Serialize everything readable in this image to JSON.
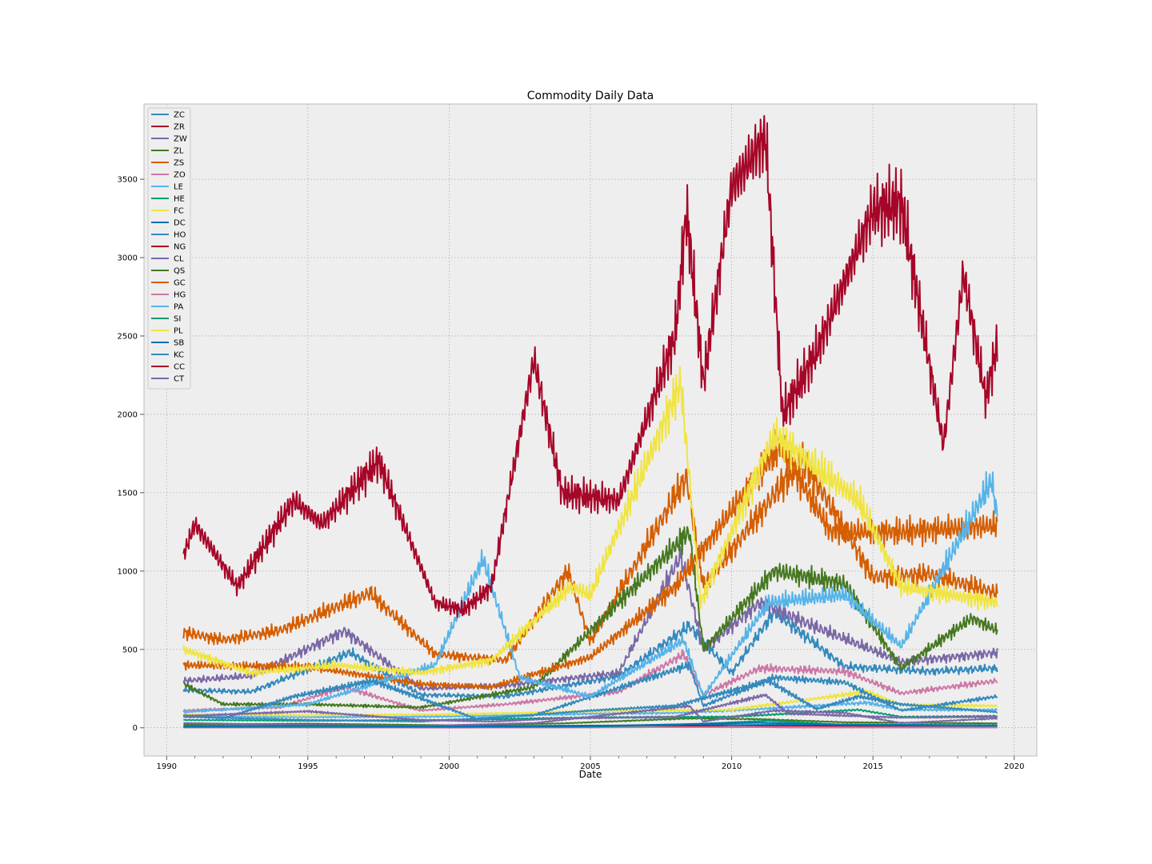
{
  "chart_data": {
    "type": "line",
    "title": "Commodity Daily Data",
    "xlabel": "Date",
    "ylabel": "",
    "xlim": [
      1989.2,
      2020.8
    ],
    "ylim": [
      -180,
      3980
    ],
    "x_ticks": [
      1990,
      1995,
      2000,
      2005,
      2010,
      2015,
      2020
    ],
    "x_tick_labels": [
      "1990",
      "1995",
      "2000",
      "2005",
      "2010",
      "2015",
      "2020"
    ],
    "y_ticks": [
      0,
      500,
      1000,
      1500,
      2000,
      2500,
      3000,
      3500
    ],
    "y_tick_labels": [
      "0",
      "500",
      "1000",
      "1500",
      "2000",
      "2500",
      "3000",
      "3500"
    ],
    "grid": true,
    "legend_position": "top-left",
    "series": [
      {
        "name": "ZC",
        "color": "#348ABD",
        "x": [
          1990.6,
          1993,
          1996.5,
          1999,
          2002,
          2006,
          2008.5,
          2010,
          2011.5,
          2014,
          2017,
          2019.4
        ],
        "values": [
          240,
          230,
          480,
          210,
          200,
          330,
          650,
          350,
          740,
          390,
          360,
          380
        ]
      },
      {
        "name": "ZR",
        "color": "#A60628",
        "x": [
          1990.6,
          1995,
          2000,
          2004,
          2008.5,
          2011,
          2015,
          2019.4
        ],
        "values": [
          7,
          8,
          6,
          8,
          22,
          14,
          11,
          11
        ]
      },
      {
        "name": "ZW",
        "color": "#7A68A6",
        "x": [
          1990.6,
          1993,
          1996.3,
          1999,
          2002,
          2006,
          2008.2,
          2009,
          2011,
          2013,
          2016,
          2019.4
        ],
        "values": [
          300,
          330,
          620,
          250,
          270,
          350,
          1100,
          500,
          800,
          640,
          420,
          480
        ]
      },
      {
        "name": "ZL",
        "color": "#467821",
        "x": [
          1990.6,
          1995,
          2000,
          2004,
          2008.5,
          2011,
          2014,
          2019.4
        ],
        "values": [
          22,
          26,
          16,
          28,
          60,
          55,
          35,
          28
        ]
      },
      {
        "name": "ZS",
        "color": "#D55E00",
        "x": [
          1990.6,
          1992,
          1994,
          1997.2,
          1999.5,
          2002,
          2004.2,
          2005,
          2008.4,
          2009,
          2012.5,
          2015,
          2017,
          2019.4
        ],
        "values": [
          610,
          560,
          620,
          860,
          470,
          430,
          1000,
          550,
          1600,
          900,
          1720,
          960,
          980,
          860
        ]
      },
      {
        "name": "ZO",
        "color": "#CC79A7",
        "x": [
          1990.6,
          1994,
          1996.3,
          1999,
          2002,
          2006,
          2008.3,
          2009,
          2011,
          2014,
          2016,
          2019.4
        ],
        "values": [
          110,
          130,
          260,
          110,
          150,
          230,
          470,
          210,
          380,
          360,
          220,
          300
        ]
      },
      {
        "name": "LE",
        "color": "#56B4E9",
        "x": [
          1990.6,
          1995,
          2000,
          2005,
          2008,
          2011,
          2014.8,
          2016,
          2019.4
        ],
        "values": [
          75,
          68,
          72,
          90,
          95,
          120,
          160,
          115,
          115
        ]
      },
      {
        "name": "HE",
        "color": "#009E73",
        "x": [
          1990.6,
          1995,
          2000,
          2005,
          2010,
          2014.5,
          2016,
          2019.4
        ],
        "values": [
          50,
          45,
          50,
          65,
          70,
          115,
          70,
          75
        ]
      },
      {
        "name": "FC",
        "color": "#F0E442",
        "x": [
          1990.6,
          1995,
          2000,
          2005,
          2010,
          2014.8,
          2016,
          2019.4
        ],
        "values": [
          85,
          80,
          85,
          105,
          115,
          230,
          145,
          140
        ]
      },
      {
        "name": "DC",
        "color": "#0072B2",
        "x": [
          1990.6,
          1995,
          2000,
          2005,
          2010,
          2014,
          2019.4
        ],
        "values": [
          12,
          13,
          11,
          14,
          17,
          22,
          16
        ]
      },
      {
        "name": "HO",
        "color": "#348ABD",
        "x": [
          1990.6,
          1995,
          1999,
          2003,
          2008.5,
          2009,
          2011.5,
          2014,
          2016,
          2019.4
        ],
        "values": [
          70,
          50,
          40,
          80,
          400,
          140,
          320,
          290,
          110,
          200
        ]
      },
      {
        "name": "NG",
        "color": "#A60628",
        "x": [
          1990.6,
          1995,
          2000,
          2003,
          2005.8,
          2008.5,
          2010,
          2012,
          2015,
          2019.4
        ],
        "values": [
          2,
          2,
          3,
          6,
          12,
          12,
          5,
          3,
          3,
          3
        ]
      },
      {
        "name": "CL",
        "color": "#7A68A6",
        "x": [
          1990.6,
          1995,
          1999,
          2003,
          2008.5,
          2009,
          2011.5,
          2014,
          2016,
          2019.4
        ],
        "values": [
          30,
          18,
          12,
          30,
          140,
          40,
          110,
          95,
          30,
          60
        ]
      },
      {
        "name": "QS",
        "color": "#467821",
        "x": [
          1990.6,
          1992,
          1995,
          1999,
          2003,
          2008.5,
          2009,
          2011.5,
          2014,
          2016,
          2018.5,
          2019.4
        ],
        "values": [
          280,
          150,
          150,
          130,
          260,
          1250,
          500,
          1000,
          920,
          380,
          700,
          620
        ]
      },
      {
        "name": "GC",
        "color": "#D55E00",
        "x": [
          1990.6,
          1995,
          1999,
          2001.5,
          2005,
          2008,
          2011.7,
          2013.5,
          2016,
          2019.4
        ],
        "values": [
          400,
          390,
          280,
          260,
          450,
          900,
          1800,
          1250,
          1250,
          1290
        ]
      },
      {
        "name": "HG",
        "color": "#CC79A7",
        "x": [
          1990.6,
          1995,
          2000,
          2005,
          2006.5,
          2008,
          2010,
          2011.5,
          2016,
          2019.4
        ],
        "values": [
          1,
          1.4,
          0.8,
          1.6,
          3.5,
          3.8,
          3.5,
          4.2,
          2.2,
          2.8
        ]
      },
      {
        "name": "PA",
        "color": "#56B4E9",
        "x": [
          1990.6,
          1995,
          1999.5,
          2001.2,
          2002.5,
          2005,
          2008.3,
          2009,
          2011.3,
          2014,
          2016,
          2019.2,
          2019.4
        ],
        "values": [
          100,
          150,
          400,
          1080,
          320,
          200,
          560,
          200,
          800,
          850,
          520,
          1580,
          1350
        ]
      },
      {
        "name": "SI",
        "color": "#009E73",
        "x": [
          1990.6,
          1995,
          2000,
          2005,
          2008,
          2011.3,
          2014,
          2019.4
        ],
        "values": [
          4.5,
          5,
          5,
          7,
          18,
          45,
          19,
          15
        ]
      },
      {
        "name": "PL",
        "color": "#F0E442",
        "x": [
          1990.6,
          1993,
          1996,
          1999,
          2001.5,
          2004.3,
          2005,
          2008.2,
          2008.9,
          2011.5,
          2014.5,
          2016,
          2019.4
        ],
        "values": [
          500,
          350,
          400,
          350,
          430,
          900,
          850,
          2200,
          800,
          1870,
          1450,
          900,
          800
        ]
      },
      {
        "name": "SB",
        "color": "#0072B2",
        "x": [
          1990.6,
          1995,
          2000,
          2005,
          2009.5,
          2011,
          2014,
          2019.4
        ],
        "values": [
          10,
          12,
          7,
          9,
          28,
          32,
          18,
          12
        ]
      },
      {
        "name": "KC",
        "color": "#348ABD",
        "x": [
          1990.6,
          1992,
          1994.5,
          1997.3,
          2001,
          2005,
          2008,
          2011.3,
          2013,
          2014.5,
          2016,
          2019.4
        ],
        "values": [
          80,
          60,
          200,
          300,
          55,
          110,
          140,
          300,
          120,
          200,
          150,
          100
        ]
      },
      {
        "name": "CC",
        "color": "#A60628",
        "x": [
          1990.6,
          1991,
          1992.5,
          1994.5,
          1995.5,
          1997.5,
          1999.5,
          2000.5,
          2001.5,
          2003,
          2004,
          2006,
          2008,
          2008.4,
          2009,
          2010,
          2011.2,
          2011.8,
          2013,
          2015,
          2016,
          2017.5,
          2018.2,
          2019,
          2019.4
        ],
        "values": [
          1100,
          1300,
          900,
          1450,
          1300,
          1700,
          800,
          750,
          900,
          2350,
          1500,
          1450,
          2500,
          3300,
          2200,
          3450,
          3770,
          2000,
          2400,
          3300,
          3350,
          1800,
          2900,
          2100,
          2450
        ]
      },
      {
        "name": "CT",
        "color": "#7A68A6",
        "x": [
          1990.6,
          1995,
          1999,
          2001.5,
          2004,
          2008,
          2011.2,
          2012,
          2016,
          2019.4
        ],
        "values": [
          75,
          105,
          50,
          40,
          60,
          70,
          210,
          90,
          65,
          70
        ]
      }
    ]
  }
}
